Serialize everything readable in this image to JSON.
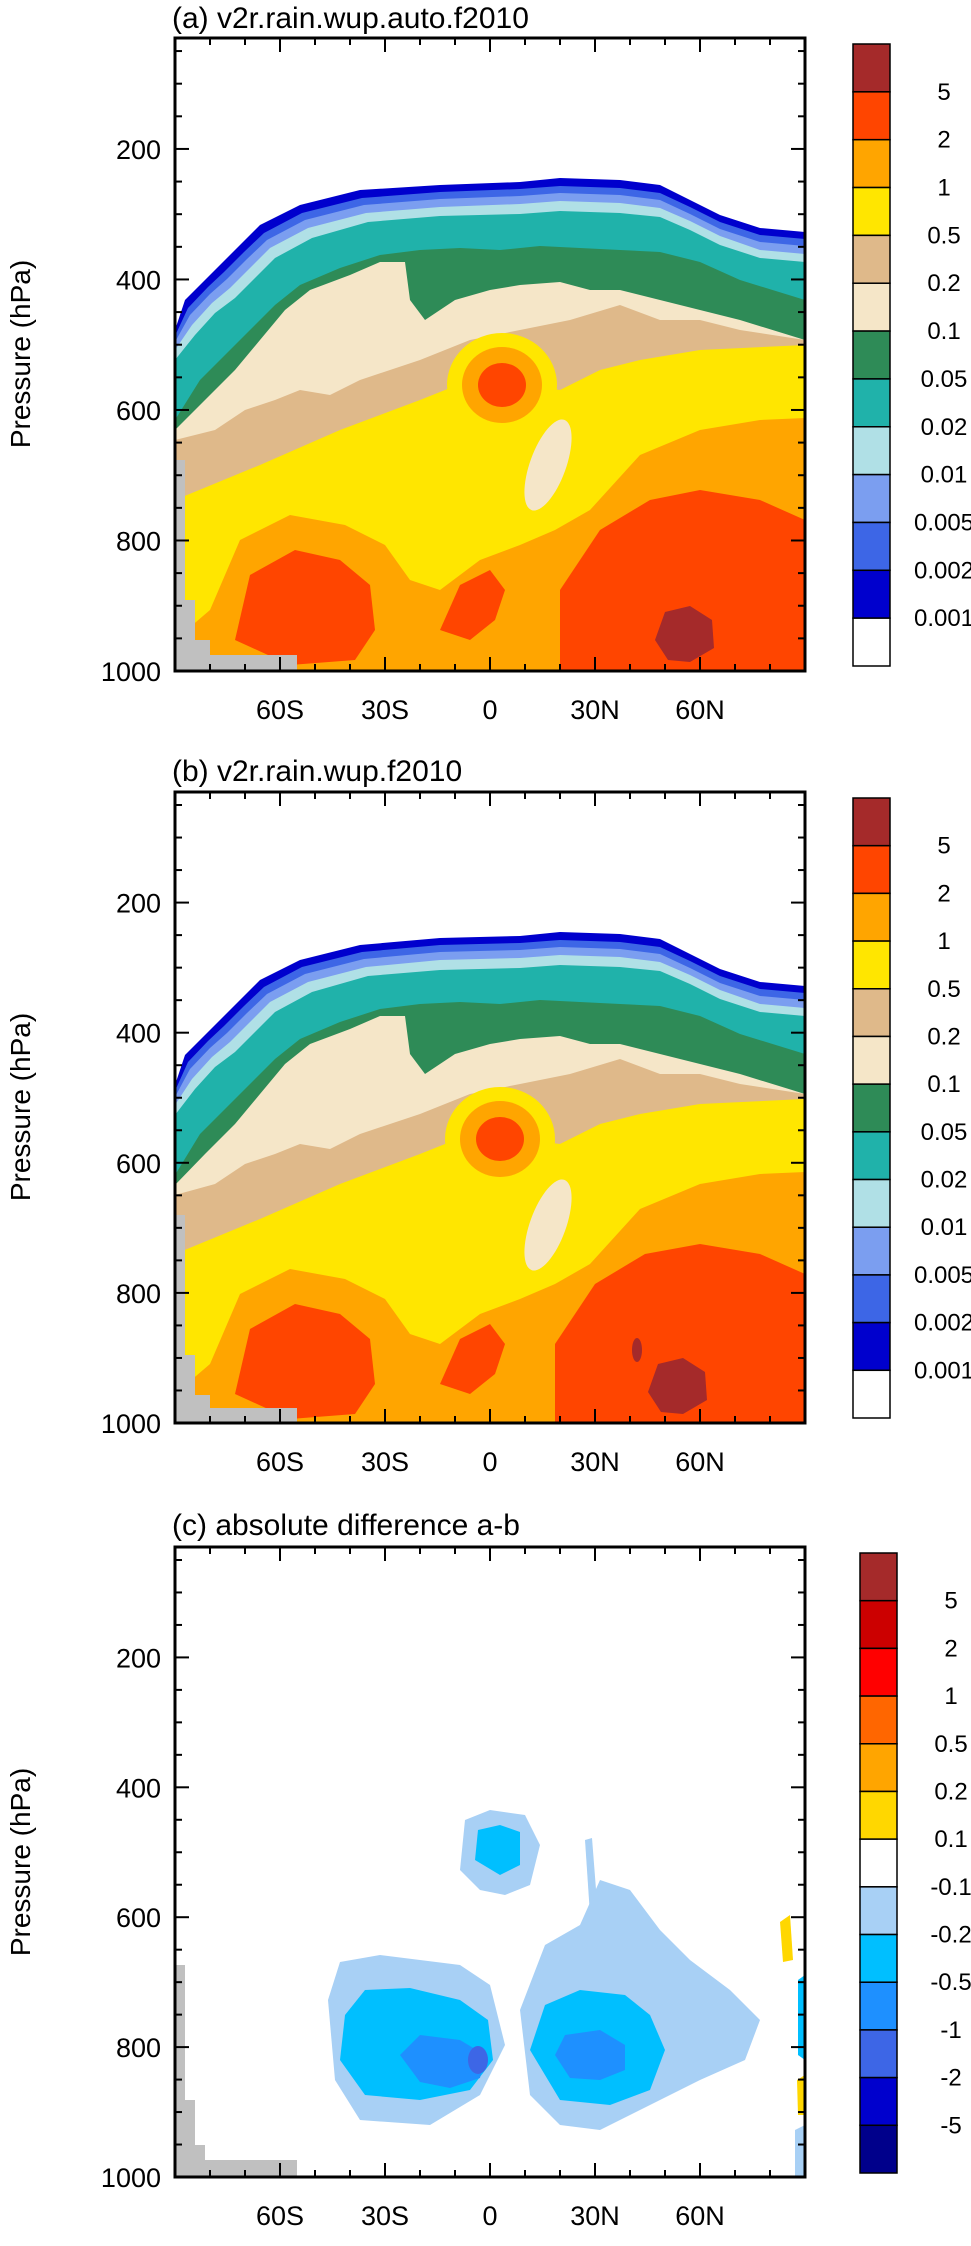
{
  "chart_data": [
    {
      "type": "heatmap",
      "title": "(a) v2r.rain.wup.auto.f2010",
      "ylabel": "Pressure (hPa)",
      "xlabel": "",
      "x_ticks": [
        "60S",
        "30S",
        "0",
        "30N",
        "60N"
      ],
      "x_tick_values": [
        -60,
        -30,
        0,
        30,
        60
      ],
      "y_ticks": [
        "200",
        "400",
        "600",
        "800",
        "1000"
      ],
      "y_tick_values": [
        200,
        400,
        600,
        800,
        1000
      ],
      "xlim": [
        -90,
        90
      ],
      "ylim": [
        1000,
        30
      ],
      "colorbar": {
        "labels": [
          "5",
          "2",
          "1",
          "0.5",
          "0.2",
          "0.1",
          "0.05",
          "0.02",
          "0.01",
          "0.005",
          "0.002",
          "0.001"
        ],
        "colors": [
          "#a52a2a",
          "#ff4500",
          "#ffa500",
          "#ffe600",
          "#dfb98a",
          "#f5e6c8",
          "#2e8b57",
          "#20b2aa",
          "#b0e0e6",
          "#7b9ef0",
          "#3d66e6",
          "#0000cd",
          "#ffffff"
        ]
      }
    },
    {
      "type": "heatmap",
      "title": "(b) v2r.rain.wup.f2010",
      "ylabel": "Pressure (hPa)",
      "xlabel": "",
      "x_ticks": [
        "60S",
        "30S",
        "0",
        "30N",
        "60N"
      ],
      "x_tick_values": [
        -60,
        -30,
        0,
        30,
        60
      ],
      "y_ticks": [
        "200",
        "400",
        "600",
        "800",
        "1000"
      ],
      "y_tick_values": [
        200,
        400,
        600,
        800,
        1000
      ],
      "xlim": [
        -90,
        90
      ],
      "ylim": [
        1000,
        30
      ],
      "colorbar": {
        "labels": [
          "5",
          "2",
          "1",
          "0.5",
          "0.2",
          "0.1",
          "0.05",
          "0.02",
          "0.01",
          "0.005",
          "0.002",
          "0.001"
        ],
        "colors": [
          "#a52a2a",
          "#ff4500",
          "#ffa500",
          "#ffe600",
          "#dfb98a",
          "#f5e6c8",
          "#2e8b57",
          "#20b2aa",
          "#b0e0e6",
          "#7b9ef0",
          "#3d66e6",
          "#0000cd",
          "#ffffff"
        ]
      }
    },
    {
      "type": "heatmap",
      "title": "(c) absolute difference a-b",
      "ylabel": "Pressure (hPa)",
      "xlabel": "",
      "x_ticks": [
        "60S",
        "30S",
        "0",
        "30N",
        "60N"
      ],
      "x_tick_values": [
        -60,
        -30,
        0,
        30,
        60
      ],
      "y_ticks": [
        "200",
        "400",
        "600",
        "800",
        "1000"
      ],
      "y_tick_values": [
        200,
        400,
        600,
        800,
        1000
      ],
      "xlim": [
        -90,
        90
      ],
      "ylim": [
        1000,
        30
      ],
      "colorbar": {
        "labels": [
          "5",
          "2",
          "1",
          "0.5",
          "0.2",
          "0.1",
          "-0.1",
          "-0.2",
          "-0.5",
          "-1",
          "-2",
          "-5"
        ],
        "colors": [
          "#a52a2a",
          "#cc0000",
          "#ff0000",
          "#ff6600",
          "#ffa500",
          "#ffd700",
          "#ffffff",
          "#a8d0f5",
          "#00bfff",
          "#1e90ff",
          "#3d66e6",
          "#0000cd",
          "#00008b"
        ]
      }
    }
  ]
}
